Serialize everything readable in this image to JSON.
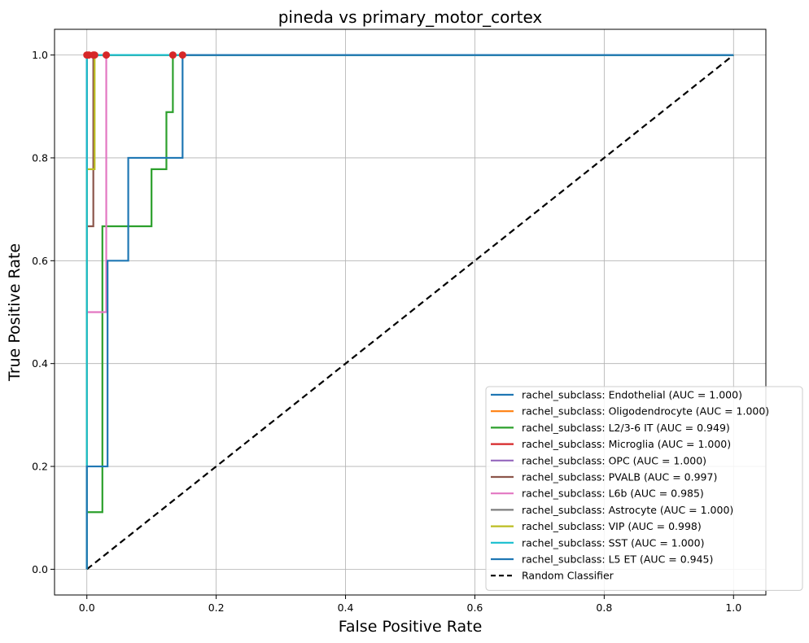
{
  "chart_data": {
    "type": "line",
    "title": "pineda vs primary_motor_cortex",
    "xlabel": "False Positive Rate",
    "ylabel": "True Positive Rate",
    "xlim": [
      -0.05,
      1.05
    ],
    "ylim": [
      -0.05,
      1.05
    ],
    "xticks": [
      "0.0",
      "0.2",
      "0.4",
      "0.6",
      "0.8",
      "1.0"
    ],
    "yticks": [
      "0.0",
      "0.2",
      "0.4",
      "0.6",
      "0.8",
      "1.0"
    ],
    "grid": true,
    "legend_position": "lower-right",
    "series": [
      {
        "name": "rachel_subclass: Endothelial (AUC = 1.000)",
        "color": "#1f77b4",
        "x": [
          0,
          0,
          1
        ],
        "y": [
          0,
          1,
          1
        ]
      },
      {
        "name": "rachel_subclass: Oligodendrocyte (AUC = 1.000)",
        "color": "#ff7f0e",
        "x": [
          0,
          0,
          1
        ],
        "y": [
          0,
          1,
          1
        ]
      },
      {
        "name": "rachel_subclass: L2/3-6 IT (AUC = 0.949)",
        "color": "#2ca02c",
        "x": [
          0,
          0,
          0.024,
          0.024,
          0.1,
          0.1,
          0.123,
          0.123,
          0.133,
          0.133,
          1
        ],
        "y": [
          0,
          0.111,
          0.111,
          0.667,
          0.667,
          0.778,
          0.778,
          0.889,
          0.889,
          1,
          1
        ]
      },
      {
        "name": "rachel_subclass: Microglia (AUC = 1.000)",
        "color": "#d62728",
        "x": [
          0,
          0,
          1
        ],
        "y": [
          0,
          1,
          1
        ]
      },
      {
        "name": "rachel_subclass: OPC (AUC = 1.000)",
        "color": "#9467bd",
        "x": [
          0,
          0,
          1
        ],
        "y": [
          0,
          1,
          1
        ]
      },
      {
        "name": "rachel_subclass: PVALB (AUC = 0.997)",
        "color": "#8c564b",
        "x": [
          0,
          0,
          0.01,
          0.01,
          1
        ],
        "y": [
          0,
          0.667,
          0.667,
          1,
          1
        ]
      },
      {
        "name": "rachel_subclass: L6b (AUC = 0.985)",
        "color": "#e377c2",
        "x": [
          0,
          0,
          0.03,
          0.03,
          1
        ],
        "y": [
          0,
          0.5,
          0.5,
          1,
          1
        ]
      },
      {
        "name": "rachel_subclass: Astrocyte (AUC = 1.000)",
        "color": "#7f7f7f",
        "x": [
          0,
          0,
          1
        ],
        "y": [
          0,
          1,
          1
        ]
      },
      {
        "name": "rachel_subclass: VIP (AUC = 0.998)",
        "color": "#bcbd22",
        "x": [
          0,
          0,
          0.012,
          0.012,
          1
        ],
        "y": [
          0,
          0.778,
          0.778,
          1,
          1
        ]
      },
      {
        "name": "rachel_subclass: SST (AUC = 1.000)",
        "color": "#17becf",
        "x": [
          0,
          0,
          1
        ],
        "y": [
          0,
          1,
          1
        ]
      },
      {
        "name": "rachel_subclass: L5 ET (AUC = 0.945)",
        "color": "#1f77b4",
        "x": [
          0,
          0,
          0.032,
          0.032,
          0.064,
          0.064,
          0.148,
          0.148,
          1
        ],
        "y": [
          0,
          0.2,
          0.2,
          0.6,
          0.6,
          0.8,
          0.8,
          1,
          1
        ]
      }
    ],
    "reference_line": {
      "name": "Random Classifier",
      "color": "#000000",
      "x": [
        0,
        1
      ],
      "y": [
        0,
        1
      ]
    },
    "threshold_markers": {
      "color": "#d62728",
      "points": [
        {
          "x": 0,
          "y": 1
        },
        {
          "x": 0.003,
          "y": 1
        },
        {
          "x": 0.01,
          "y": 1
        },
        {
          "x": 0.012,
          "y": 1
        },
        {
          "x": 0.03,
          "y": 1
        },
        {
          "x": 0.133,
          "y": 1
        },
        {
          "x": 0.148,
          "y": 1
        }
      ]
    }
  }
}
